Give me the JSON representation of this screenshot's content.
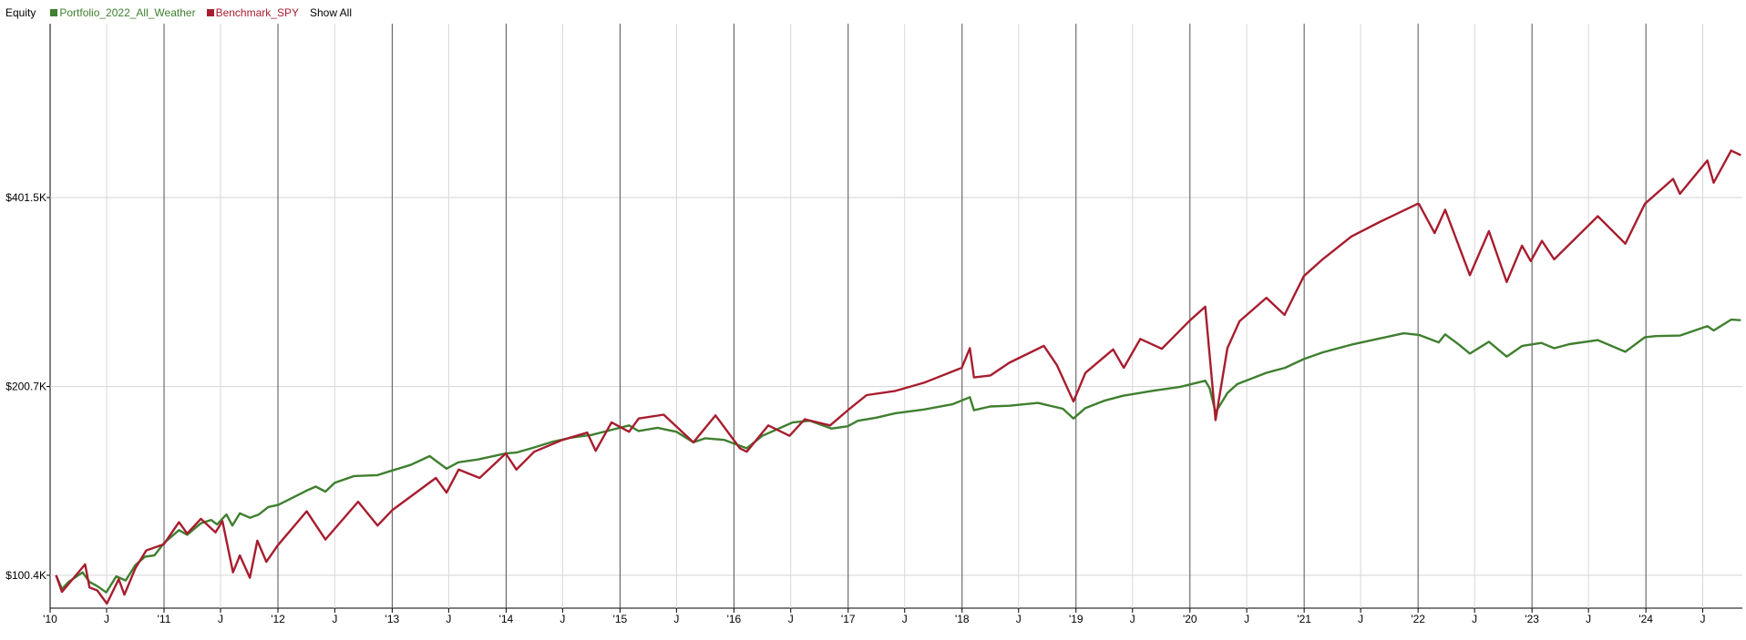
{
  "legend": {
    "title": "Equity",
    "show_all": "Show All"
  },
  "chart_data": {
    "type": "line",
    "title": "Equity",
    "y_scale": "log",
    "y_ticks": [
      {
        "value": 100400,
        "label": "$100.4K"
      },
      {
        "value": 200700,
        "label": "$200.7K"
      },
      {
        "value": 401500,
        "label": "$401.5K"
      }
    ],
    "ylim": [
      89000,
      760000
    ],
    "xlim": [
      "2010-01-01",
      "2024-11-05"
    ],
    "x_year_ticks": [
      {
        "date": "2010-01-01",
        "label": "'10"
      },
      {
        "date": "2011-01-01",
        "label": "'11"
      },
      {
        "date": "2012-01-01",
        "label": "'12"
      },
      {
        "date": "2013-01-01",
        "label": "'13"
      },
      {
        "date": "2014-01-01",
        "label": "'14"
      },
      {
        "date": "2015-01-01",
        "label": "'15"
      },
      {
        "date": "2016-01-01",
        "label": "'16"
      },
      {
        "date": "2017-01-01",
        "label": "'17"
      },
      {
        "date": "2018-01-01",
        "label": "'18"
      },
      {
        "date": "2019-01-01",
        "label": "'19"
      },
      {
        "date": "2020-01-01",
        "label": "'20"
      },
      {
        "date": "2021-01-01",
        "label": "'21"
      },
      {
        "date": "2022-01-01",
        "label": "'22"
      },
      {
        "date": "2023-01-01",
        "label": "'23"
      },
      {
        "date": "2024-01-01",
        "label": "'24"
      }
    ],
    "x_mid_label": "J",
    "grid": true,
    "legend_position": "top-left",
    "series": [
      {
        "name": "Portfolio_2022_All_Weather",
        "color": "#3f7f2f",
        "points": [
          [
            "2010-01-20",
            100400
          ],
          [
            "2010-02-08",
            95500
          ],
          [
            "2010-03-01",
            98000
          ],
          [
            "2010-04-15",
            101500
          ],
          [
            "2010-05-07",
            98000
          ],
          [
            "2010-06-01",
            96500
          ],
          [
            "2010-06-30",
            94300
          ],
          [
            "2010-08-01",
            100000
          ],
          [
            "2010-08-31",
            98500
          ],
          [
            "2010-10-01",
            104200
          ],
          [
            "2010-11-01",
            107500
          ],
          [
            "2010-12-01",
            108000
          ],
          [
            "2011-01-01",
            113000
          ],
          [
            "2011-02-18",
            118500
          ],
          [
            "2011-03-16",
            116500
          ],
          [
            "2011-04-29",
            121500
          ],
          [
            "2011-06-01",
            123000
          ],
          [
            "2011-06-20",
            121000
          ],
          [
            "2011-07-20",
            125500
          ],
          [
            "2011-08-08",
            120500
          ],
          [
            "2011-09-01",
            126000
          ],
          [
            "2011-10-03",
            124000
          ],
          [
            "2011-11-01",
            125500
          ],
          [
            "2011-12-01",
            129000
          ],
          [
            "2012-01-02",
            130000
          ],
          [
            "2012-03-01",
            134500
          ],
          [
            "2012-04-02",
            137000
          ],
          [
            "2012-05-01",
            139000
          ],
          [
            "2012-06-01",
            136500
          ],
          [
            "2012-07-01",
            141000
          ],
          [
            "2012-09-01",
            144500
          ],
          [
            "2012-11-15",
            145000
          ],
          [
            "2013-01-01",
            147500
          ],
          [
            "2013-03-01",
            150500
          ],
          [
            "2013-05-01",
            155500
          ],
          [
            "2013-06-24",
            148500
          ],
          [
            "2013-08-01",
            152000
          ],
          [
            "2013-10-01",
            153500
          ],
          [
            "2013-12-31",
            157000
          ],
          [
            "2014-02-03",
            157500
          ],
          [
            "2014-04-01",
            160500
          ],
          [
            "2014-06-01",
            164000
          ],
          [
            "2014-08-01",
            166500
          ],
          [
            "2014-10-01",
            168000
          ],
          [
            "2014-12-01",
            171000
          ],
          [
            "2015-01-30",
            174000
          ],
          [
            "2015-03-01",
            170500
          ],
          [
            "2015-05-01",
            172500
          ],
          [
            "2015-07-01",
            170000
          ],
          [
            "2015-08-24",
            163500
          ],
          [
            "2015-10-01",
            166000
          ],
          [
            "2015-12-01",
            165000
          ],
          [
            "2016-01-20",
            161500
          ],
          [
            "2016-02-11",
            160000
          ],
          [
            "2016-04-01",
            167500
          ],
          [
            "2016-07-08",
            176000
          ],
          [
            "2016-09-01",
            177000
          ],
          [
            "2016-11-08",
            172000
          ],
          [
            "2016-12-31",
            173500
          ],
          [
            "2017-02-01",
            177000
          ],
          [
            "2017-04-01",
            179000
          ],
          [
            "2017-06-01",
            182000
          ],
          [
            "2017-09-01",
            184500
          ],
          [
            "2017-12-01",
            188000
          ],
          [
            "2018-01-26",
            193000
          ],
          [
            "2018-02-08",
            184000
          ],
          [
            "2018-04-01",
            186500
          ],
          [
            "2018-06-01",
            187000
          ],
          [
            "2018-09-01",
            189000
          ],
          [
            "2018-11-20",
            185000
          ],
          [
            "2018-12-24",
            178500
          ],
          [
            "2019-01-31",
            185500
          ],
          [
            "2019-04-01",
            190500
          ],
          [
            "2019-06-01",
            194000
          ],
          [
            "2019-09-01",
            197500
          ],
          [
            "2019-12-01",
            200500
          ],
          [
            "2020-02-19",
            205000
          ],
          [
            "2020-03-04",
            199500
          ],
          [
            "2020-03-23",
            182500
          ],
          [
            "2020-04-30",
            196000
          ],
          [
            "2020-06-01",
            202500
          ],
          [
            "2020-09-01",
            211000
          ],
          [
            "2020-11-01",
            215000
          ],
          [
            "2020-12-31",
            222000
          ],
          [
            "2021-03-01",
            227500
          ],
          [
            "2021-06-01",
            234000
          ],
          [
            "2021-09-01",
            239500
          ],
          [
            "2021-11-16",
            244000
          ],
          [
            "2022-01-04",
            242500
          ],
          [
            "2022-03-08",
            236000
          ],
          [
            "2022-03-29",
            243000
          ],
          [
            "2022-05-12",
            234000
          ],
          [
            "2022-06-16",
            226500
          ],
          [
            "2022-08-16",
            236500
          ],
          [
            "2022-10-12",
            224000
          ],
          [
            "2022-12-01",
            233000
          ],
          [
            "2023-01-31",
            235500
          ],
          [
            "2023-03-13",
            231000
          ],
          [
            "2023-05-01",
            234500
          ],
          [
            "2023-07-31",
            238000
          ],
          [
            "2023-10-27",
            228000
          ],
          [
            "2023-12-29",
            240500
          ],
          [
            "2024-02-01",
            241500
          ],
          [
            "2024-04-19",
            242000
          ],
          [
            "2024-07-16",
            250500
          ],
          [
            "2024-08-05",
            246500
          ],
          [
            "2024-09-30",
            256500
          ],
          [
            "2024-10-31",
            256000
          ]
        ]
      },
      {
        "name": "Benchmark_SPY",
        "color": "#a71d2f",
        "points": [
          [
            "2010-01-20",
            100400
          ],
          [
            "2010-02-08",
            94500
          ],
          [
            "2010-04-23",
            104500
          ],
          [
            "2010-05-07",
            96000
          ],
          [
            "2010-06-01",
            95000
          ],
          [
            "2010-07-02",
            90500
          ],
          [
            "2010-08-09",
            99000
          ],
          [
            "2010-08-27",
            93500
          ],
          [
            "2010-10-01",
            103000
          ],
          [
            "2010-11-05",
            110000
          ],
          [
            "2010-12-31",
            112500
          ],
          [
            "2011-02-18",
            122000
          ],
          [
            "2011-03-16",
            117000
          ],
          [
            "2011-04-29",
            123500
          ],
          [
            "2011-06-15",
            117500
          ],
          [
            "2011-07-07",
            122500
          ],
          [
            "2011-08-10",
            101500
          ],
          [
            "2011-09-01",
            108000
          ],
          [
            "2011-10-03",
            99500
          ],
          [
            "2011-10-27",
            114000
          ],
          [
            "2011-11-25",
            105500
          ],
          [
            "2011-12-31",
            112000
          ],
          [
            "2012-04-02",
            127000
          ],
          [
            "2012-06-01",
            114500
          ],
          [
            "2012-09-14",
            131500
          ],
          [
            "2012-11-15",
            120500
          ],
          [
            "2013-01-01",
            127500
          ],
          [
            "2013-03-01",
            134000
          ],
          [
            "2013-05-21",
            143500
          ],
          [
            "2013-06-24",
            136000
          ],
          [
            "2013-08-02",
            148000
          ],
          [
            "2013-10-08",
            143500
          ],
          [
            "2013-12-31",
            157000
          ],
          [
            "2014-02-03",
            148000
          ],
          [
            "2014-04-01",
            158000
          ],
          [
            "2014-07-01",
            165000
          ],
          [
            "2014-09-18",
            169500
          ],
          [
            "2014-10-15",
            158500
          ],
          [
            "2014-12-05",
            176000
          ],
          [
            "2015-01-30",
            170000
          ],
          [
            "2015-03-02",
            178500
          ],
          [
            "2015-05-21",
            181000
          ],
          [
            "2015-08-24",
            163500
          ],
          [
            "2015-11-03",
            180500
          ],
          [
            "2016-01-20",
            160000
          ],
          [
            "2016-02-11",
            158000
          ],
          [
            "2016-04-20",
            174000
          ],
          [
            "2016-06-27",
            167500
          ],
          [
            "2016-08-15",
            178000
          ],
          [
            "2016-11-04",
            174000
          ],
          [
            "2016-12-31",
            184000
          ],
          [
            "2017-03-01",
            194500
          ],
          [
            "2017-06-01",
            197500
          ],
          [
            "2017-09-01",
            203500
          ],
          [
            "2017-12-31",
            215000
          ],
          [
            "2018-01-26",
            231000
          ],
          [
            "2018-02-08",
            207500
          ],
          [
            "2018-04-02",
            209000
          ],
          [
            "2018-06-01",
            219000
          ],
          [
            "2018-09-20",
            233000
          ],
          [
            "2018-11-01",
            217000
          ],
          [
            "2018-12-24",
            190000
          ],
          [
            "2019-01-31",
            211000
          ],
          [
            "2019-04-30",
            230000
          ],
          [
            "2019-06-03",
            215000
          ],
          [
            "2019-07-26",
            239000
          ],
          [
            "2019-10-03",
            230500
          ],
          [
            "2019-12-31",
            255500
          ],
          [
            "2020-02-19",
            269000
          ],
          [
            "2020-03-23",
            177500
          ],
          [
            "2020-04-30",
            231000
          ],
          [
            "2020-06-08",
            255000
          ],
          [
            "2020-09-02",
            278000
          ],
          [
            "2020-10-30",
            261000
          ],
          [
            "2020-12-31",
            301000
          ],
          [
            "2021-03-01",
            320000
          ],
          [
            "2021-06-01",
            348000
          ],
          [
            "2021-09-02",
            367500
          ],
          [
            "2021-12-31",
            392500
          ],
          [
            "2022-01-04",
            392000
          ],
          [
            "2022-02-23",
            352500
          ],
          [
            "2022-03-29",
            384000
          ],
          [
            "2022-06-16",
            302000
          ],
          [
            "2022-08-16",
            355000
          ],
          [
            "2022-10-12",
            294500
          ],
          [
            "2022-11-30",
            336500
          ],
          [
            "2022-12-28",
            318000
          ],
          [
            "2023-02-02",
            342500
          ],
          [
            "2023-03-13",
            320000
          ],
          [
            "2023-07-31",
            375000
          ],
          [
            "2023-10-27",
            339000
          ],
          [
            "2023-12-29",
            392500
          ],
          [
            "2024-03-28",
            430000
          ],
          [
            "2024-04-19",
            407000
          ],
          [
            "2024-07-16",
            460000
          ],
          [
            "2024-08-05",
            424000
          ],
          [
            "2024-09-30",
            477000
          ],
          [
            "2024-10-31",
            469000
          ]
        ]
      }
    ]
  }
}
